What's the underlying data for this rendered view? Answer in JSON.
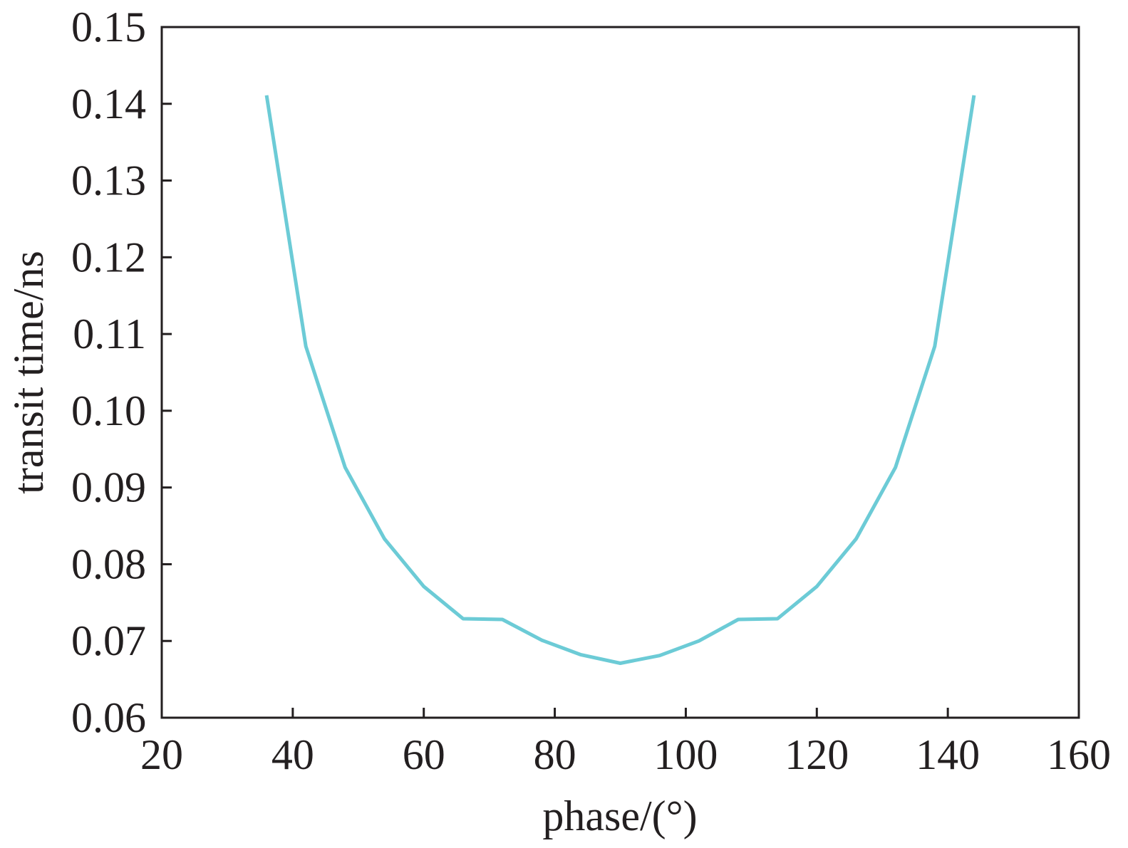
{
  "chart_data": {
    "type": "line",
    "title": "",
    "xlabel": "phase/(°)",
    "ylabel": "transit time/ns",
    "xlim": [
      20,
      160
    ],
    "ylim": [
      0.06,
      0.15
    ],
    "xticks": [
      20,
      40,
      60,
      80,
      100,
      120,
      140,
      160
    ],
    "xtick_labels": [
      "20",
      "40",
      "60",
      "80",
      "100",
      "120",
      "140",
      "160"
    ],
    "yticks": [
      0.06,
      0.07,
      0.08,
      0.09,
      0.1,
      0.11,
      0.12,
      0.13,
      0.14,
      0.15
    ],
    "ytick_labels": [
      "0.06",
      "0.07",
      "0.08",
      "0.09",
      "0.10",
      "0.11",
      "0.12",
      "0.13",
      "0.14",
      "0.15"
    ],
    "grid": false,
    "series": [
      {
        "color": "#6ccbd6",
        "x": [
          36,
          42,
          48,
          54,
          60,
          66,
          72,
          78,
          84,
          90,
          96,
          102,
          108,
          114,
          120,
          126,
          132,
          138,
          144
        ],
        "y": [
          0.1411,
          0.1084,
          0.0926,
          0.0833,
          0.0771,
          0.0729,
          0.0728,
          0.0701,
          0.0682,
          0.0671,
          0.0681,
          0.07,
          0.0728,
          0.0729,
          0.0771,
          0.0833,
          0.0926,
          0.1084,
          0.1411
        ]
      }
    ]
  }
}
